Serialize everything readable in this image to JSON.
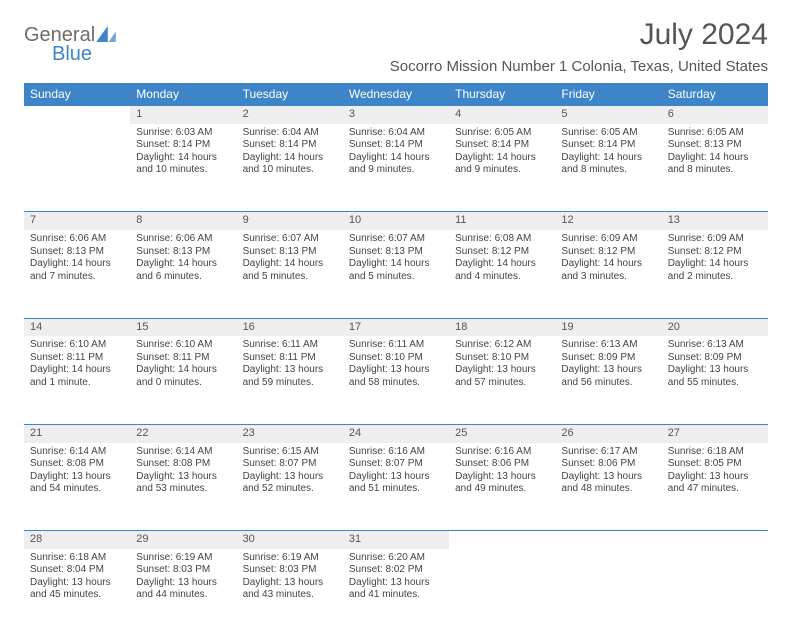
{
  "logo": {
    "part1": "General",
    "part2": "Blue"
  },
  "title": "July 2024",
  "location": "Socorro Mission Number 1 Colonia, Texas, United States",
  "dayHeaders": [
    "Sunday",
    "Monday",
    "Tuesday",
    "Wednesday",
    "Thursday",
    "Friday",
    "Saturday"
  ],
  "header_bg": "#3d85c6",
  "header_fg": "#ffffff",
  "daynum_bg": "#eeeeee",
  "border_color": "#3d85c6",
  "weeks": [
    {
      "days": [
        {
          "empty": true
        },
        {
          "num": "1",
          "sunrise": "Sunrise: 6:03 AM",
          "sunset": "Sunset: 8:14 PM",
          "dl1": "Daylight: 14 hours",
          "dl2": "and 10 minutes."
        },
        {
          "num": "2",
          "sunrise": "Sunrise: 6:04 AM",
          "sunset": "Sunset: 8:14 PM",
          "dl1": "Daylight: 14 hours",
          "dl2": "and 10 minutes."
        },
        {
          "num": "3",
          "sunrise": "Sunrise: 6:04 AM",
          "sunset": "Sunset: 8:14 PM",
          "dl1": "Daylight: 14 hours",
          "dl2": "and 9 minutes."
        },
        {
          "num": "4",
          "sunrise": "Sunrise: 6:05 AM",
          "sunset": "Sunset: 8:14 PM",
          "dl1": "Daylight: 14 hours",
          "dl2": "and 9 minutes."
        },
        {
          "num": "5",
          "sunrise": "Sunrise: 6:05 AM",
          "sunset": "Sunset: 8:14 PM",
          "dl1": "Daylight: 14 hours",
          "dl2": "and 8 minutes."
        },
        {
          "num": "6",
          "sunrise": "Sunrise: 6:05 AM",
          "sunset": "Sunset: 8:13 PM",
          "dl1": "Daylight: 14 hours",
          "dl2": "and 8 minutes."
        }
      ]
    },
    {
      "days": [
        {
          "num": "7",
          "sunrise": "Sunrise: 6:06 AM",
          "sunset": "Sunset: 8:13 PM",
          "dl1": "Daylight: 14 hours",
          "dl2": "and 7 minutes."
        },
        {
          "num": "8",
          "sunrise": "Sunrise: 6:06 AM",
          "sunset": "Sunset: 8:13 PM",
          "dl1": "Daylight: 14 hours",
          "dl2": "and 6 minutes."
        },
        {
          "num": "9",
          "sunrise": "Sunrise: 6:07 AM",
          "sunset": "Sunset: 8:13 PM",
          "dl1": "Daylight: 14 hours",
          "dl2": "and 5 minutes."
        },
        {
          "num": "10",
          "sunrise": "Sunrise: 6:07 AM",
          "sunset": "Sunset: 8:13 PM",
          "dl1": "Daylight: 14 hours",
          "dl2": "and 5 minutes."
        },
        {
          "num": "11",
          "sunrise": "Sunrise: 6:08 AM",
          "sunset": "Sunset: 8:12 PM",
          "dl1": "Daylight: 14 hours",
          "dl2": "and 4 minutes."
        },
        {
          "num": "12",
          "sunrise": "Sunrise: 6:09 AM",
          "sunset": "Sunset: 8:12 PM",
          "dl1": "Daylight: 14 hours",
          "dl2": "and 3 minutes."
        },
        {
          "num": "13",
          "sunrise": "Sunrise: 6:09 AM",
          "sunset": "Sunset: 8:12 PM",
          "dl1": "Daylight: 14 hours",
          "dl2": "and 2 minutes."
        }
      ]
    },
    {
      "days": [
        {
          "num": "14",
          "sunrise": "Sunrise: 6:10 AM",
          "sunset": "Sunset: 8:11 PM",
          "dl1": "Daylight: 14 hours",
          "dl2": "and 1 minute."
        },
        {
          "num": "15",
          "sunrise": "Sunrise: 6:10 AM",
          "sunset": "Sunset: 8:11 PM",
          "dl1": "Daylight: 14 hours",
          "dl2": "and 0 minutes."
        },
        {
          "num": "16",
          "sunrise": "Sunrise: 6:11 AM",
          "sunset": "Sunset: 8:11 PM",
          "dl1": "Daylight: 13 hours",
          "dl2": "and 59 minutes."
        },
        {
          "num": "17",
          "sunrise": "Sunrise: 6:11 AM",
          "sunset": "Sunset: 8:10 PM",
          "dl1": "Daylight: 13 hours",
          "dl2": "and 58 minutes."
        },
        {
          "num": "18",
          "sunrise": "Sunrise: 6:12 AM",
          "sunset": "Sunset: 8:10 PM",
          "dl1": "Daylight: 13 hours",
          "dl2": "and 57 minutes."
        },
        {
          "num": "19",
          "sunrise": "Sunrise: 6:13 AM",
          "sunset": "Sunset: 8:09 PM",
          "dl1": "Daylight: 13 hours",
          "dl2": "and 56 minutes."
        },
        {
          "num": "20",
          "sunrise": "Sunrise: 6:13 AM",
          "sunset": "Sunset: 8:09 PM",
          "dl1": "Daylight: 13 hours",
          "dl2": "and 55 minutes."
        }
      ]
    },
    {
      "days": [
        {
          "num": "21",
          "sunrise": "Sunrise: 6:14 AM",
          "sunset": "Sunset: 8:08 PM",
          "dl1": "Daylight: 13 hours",
          "dl2": "and 54 minutes."
        },
        {
          "num": "22",
          "sunrise": "Sunrise: 6:14 AM",
          "sunset": "Sunset: 8:08 PM",
          "dl1": "Daylight: 13 hours",
          "dl2": "and 53 minutes."
        },
        {
          "num": "23",
          "sunrise": "Sunrise: 6:15 AM",
          "sunset": "Sunset: 8:07 PM",
          "dl1": "Daylight: 13 hours",
          "dl2": "and 52 minutes."
        },
        {
          "num": "24",
          "sunrise": "Sunrise: 6:16 AM",
          "sunset": "Sunset: 8:07 PM",
          "dl1": "Daylight: 13 hours",
          "dl2": "and 51 minutes."
        },
        {
          "num": "25",
          "sunrise": "Sunrise: 6:16 AM",
          "sunset": "Sunset: 8:06 PM",
          "dl1": "Daylight: 13 hours",
          "dl2": "and 49 minutes."
        },
        {
          "num": "26",
          "sunrise": "Sunrise: 6:17 AM",
          "sunset": "Sunset: 8:06 PM",
          "dl1": "Daylight: 13 hours",
          "dl2": "and 48 minutes."
        },
        {
          "num": "27",
          "sunrise": "Sunrise: 6:18 AM",
          "sunset": "Sunset: 8:05 PM",
          "dl1": "Daylight: 13 hours",
          "dl2": "and 47 minutes."
        }
      ]
    },
    {
      "days": [
        {
          "num": "28",
          "sunrise": "Sunrise: 6:18 AM",
          "sunset": "Sunset: 8:04 PM",
          "dl1": "Daylight: 13 hours",
          "dl2": "and 45 minutes."
        },
        {
          "num": "29",
          "sunrise": "Sunrise: 6:19 AM",
          "sunset": "Sunset: 8:03 PM",
          "dl1": "Daylight: 13 hours",
          "dl2": "and 44 minutes."
        },
        {
          "num": "30",
          "sunrise": "Sunrise: 6:19 AM",
          "sunset": "Sunset: 8:03 PM",
          "dl1": "Daylight: 13 hours",
          "dl2": "and 43 minutes."
        },
        {
          "num": "31",
          "sunrise": "Sunrise: 6:20 AM",
          "sunset": "Sunset: 8:02 PM",
          "dl1": "Daylight: 13 hours",
          "dl2": "and 41 minutes."
        },
        {
          "empty": true
        },
        {
          "empty": true
        },
        {
          "empty": true
        }
      ]
    }
  ]
}
